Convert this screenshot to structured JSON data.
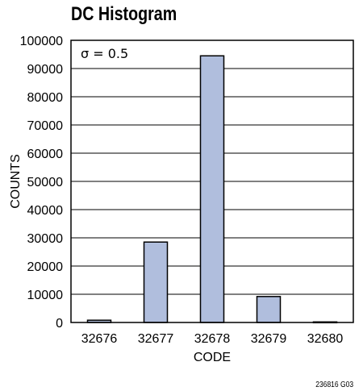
{
  "chart_data": {
    "type": "bar",
    "title": "DC Histogram",
    "annotation": "σ = 0.5",
    "xlabel": "CODE",
    "ylabel": "COUNTS",
    "categories": [
      "32676",
      "32677",
      "32678",
      "32679",
      "32680"
    ],
    "values": [
      800,
      28500,
      94500,
      9200,
      200
    ],
    "ylim": [
      0,
      100000
    ],
    "yticks": [
      0,
      10000,
      20000,
      30000,
      40000,
      50000,
      60000,
      70000,
      80000,
      90000,
      100000
    ],
    "grid": true,
    "bar_color": "#b0bedd",
    "figure_id": "236816 G03"
  }
}
